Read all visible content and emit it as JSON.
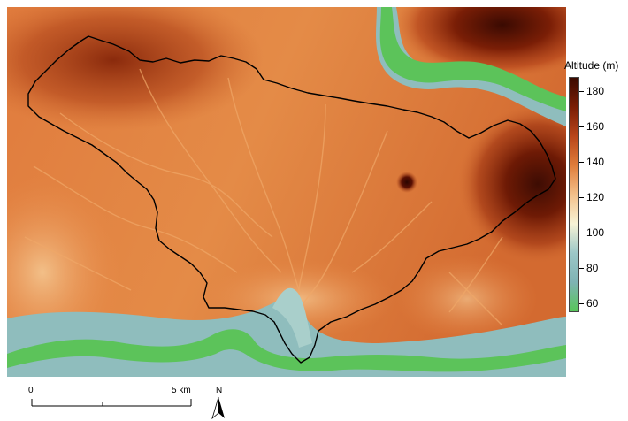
{
  "legend": {
    "title": "Altitude (m)",
    "ticks": [
      "180",
      "160",
      "140",
      "120",
      "100",
      "80",
      "60"
    ],
    "colors": [
      "#3b0a00",
      "#7a1e05",
      "#b8451a",
      "#df7d3a",
      "#f3c08a",
      "#f7f3d6",
      "#9cc7c7",
      "#7fb3b4",
      "#58c55a"
    ]
  },
  "scale_bar": {
    "start_label": "0",
    "end_label": "5 km"
  },
  "north_arrow": {
    "label": "N"
  },
  "map": {
    "river_color": "#5cc35a",
    "valley_color": "#8fbdbd",
    "boundary_color": "#000000"
  }
}
